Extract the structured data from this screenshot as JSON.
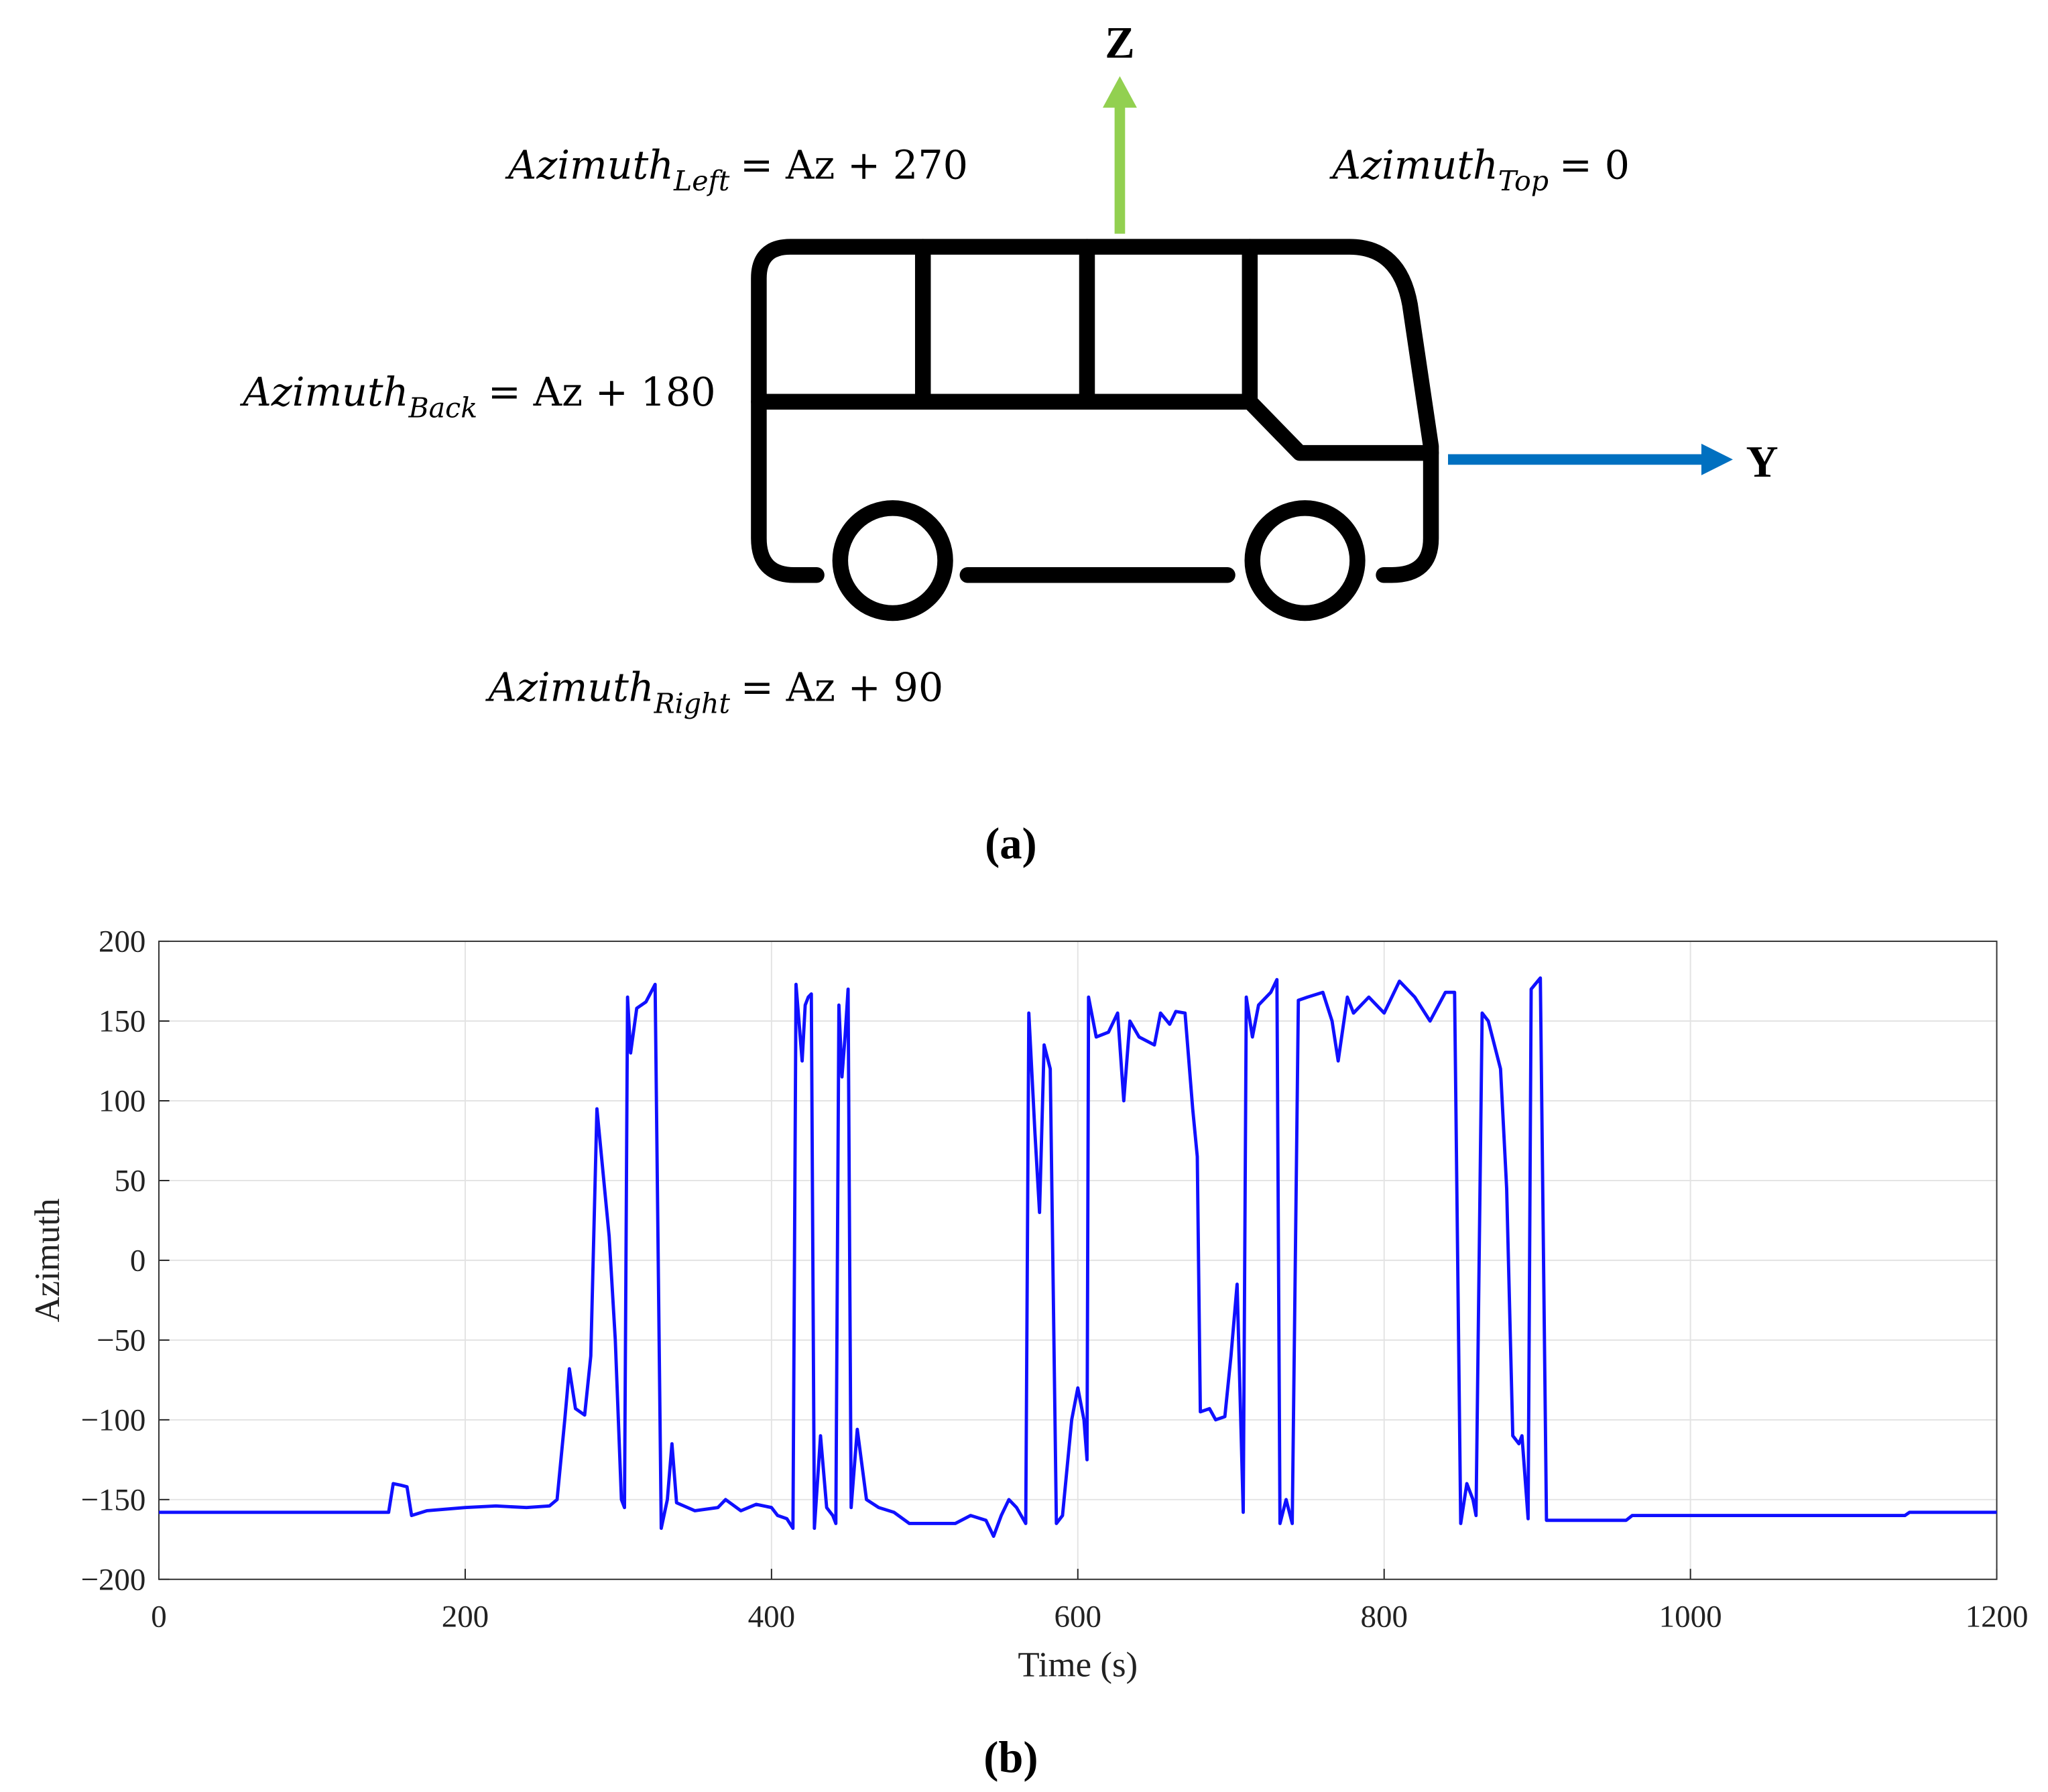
{
  "diagram": {
    "z_label": "Z",
    "y_label": "Y",
    "equations": [
      {
        "base": "Azimuth",
        "sub": "Left",
        "rhs": "= Az + 270"
      },
      {
        "base": "Azimuth",
        "sub": "Top",
        "rhs": "= 0"
      },
      {
        "base": "Azimuth",
        "sub": "Back",
        "rhs": "= Az + 180"
      },
      {
        "base": "Azimuth",
        "sub": "Right",
        "rhs": "= Az + 90"
      }
    ]
  },
  "figure_labels": [
    "(a)",
    "(b)"
  ],
  "chart_data": {
    "type": "line",
    "xlabel": "Time (s)",
    "ylabel": "Azimuth",
    "color": "#1010ff",
    "grid": true,
    "xlim": [
      0,
      1200
    ],
    "ylim": [
      -200,
      200
    ],
    "xticks": [
      0,
      200,
      400,
      600,
      800,
      1000,
      1200
    ],
    "yticks": [
      {
        "value": -200,
        "label": "−200"
      },
      {
        "value": -150,
        "label": "−150"
      },
      {
        "value": -100,
        "label": "−100"
      },
      {
        "value": -50,
        "label": "−50"
      },
      0,
      50,
      100,
      150,
      200
    ],
    "x": [
      0,
      150,
      153,
      158,
      162,
      165,
      175,
      200,
      220,
      240,
      255,
      260,
      265,
      268,
      272,
      278,
      282,
      286,
      290,
      294,
      298,
      302,
      304,
      306,
      308,
      312,
      318,
      324,
      328,
      332,
      335,
      338,
      350,
      365,
      370,
      380,
      390,
      400,
      404,
      410,
      414,
      416,
      420,
      422,
      424,
      426,
      428,
      432,
      436,
      440,
      442,
      444,
      446,
      448,
      450,
      452,
      456,
      462,
      470,
      480,
      490,
      520,
      530,
      540,
      545,
      550,
      555,
      560,
      566,
      568,
      572,
      575,
      578,
      582,
      586,
      590,
      596,
      600,
      604,
      606,
      607,
      612,
      620,
      626,
      630,
      634,
      640,
      650,
      654,
      660,
      664,
      670,
      675,
      678,
      680,
      686,
      690,
      696,
      700,
      704,
      708,
      710,
      714,
      718,
      726,
      730,
      732,
      736,
      740,
      744,
      750,
      760,
      766,
      770,
      776,
      780,
      790,
      800,
      810,
      820,
      830,
      840,
      846,
      850,
      854,
      858,
      860,
      864,
      868,
      876,
      880,
      884,
      888,
      890,
      894,
      896,
      902,
      906,
      920,
      958,
      962,
      1000,
      1100,
      1140,
      1143,
      1200
    ],
    "values": [
      -158,
      -158,
      -140,
      -141,
      -142,
      -160,
      -157,
      -155,
      -154,
      -155,
      -154,
      -150,
      -100,
      -68,
      -93,
      -97,
      -60,
      95,
      55,
      15,
      -50,
      -150,
      -155,
      165,
      130,
      158,
      162,
      173,
      -168,
      -150,
      -115,
      -152,
      -157,
      -155,
      -150,
      -157,
      -153,
      -155,
      -160,
      -162,
      -168,
      173,
      125,
      160,
      165,
      167,
      -168,
      -110,
      -155,
      -160,
      -165,
      160,
      115,
      140,
      170,
      -155,
      -106,
      -150,
      -155,
      -158,
      -165,
      -165,
      -160,
      -163,
      -173,
      -160,
      -150,
      -155,
      -165,
      155,
      80,
      30,
      135,
      120,
      -165,
      -160,
      -100,
      -80,
      -100,
      -125,
      165,
      140,
      143,
      155,
      100,
      150,
      140,
      135,
      155,
      148,
      156,
      155,
      95,
      65,
      -95,
      -93,
      -100,
      -98,
      -60,
      -15,
      -158,
      165,
      140,
      160,
      168,
      176,
      -165,
      -150,
      -165,
      163,
      165,
      168,
      150,
      125,
      165,
      155,
      165,
      155,
      175,
      165,
      150,
      168,
      168,
      -165,
      -140,
      -150,
      -160,
      155,
      150,
      120,
      45,
      -110,
      -115,
      -110,
      -162,
      170,
      177,
      -163,
      -163,
      -163,
      -160,
      -160,
      -160,
      -160,
      -158,
      -158
    ]
  }
}
